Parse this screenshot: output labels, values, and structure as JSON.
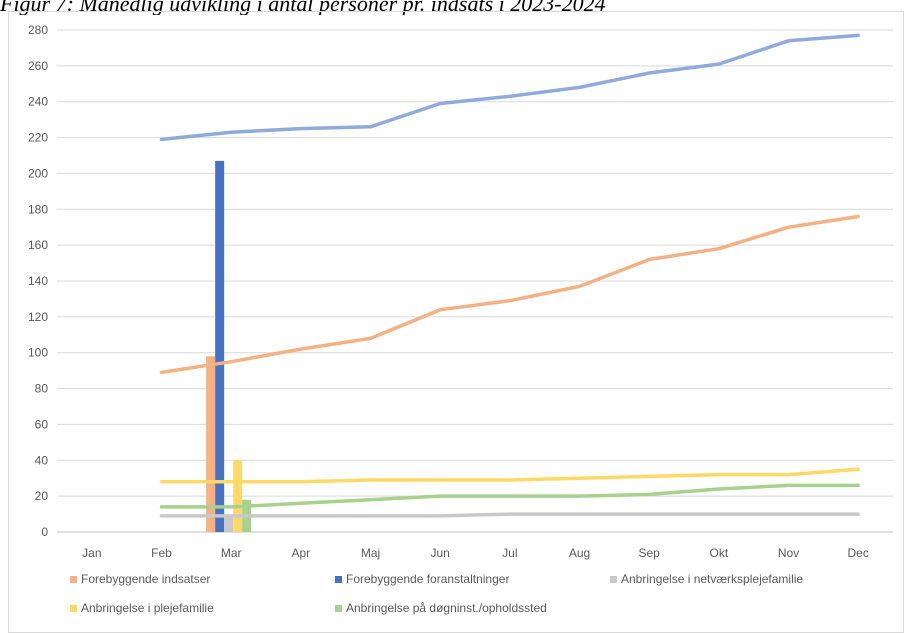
{
  "caption": "Figur 7: Månedlig udvikling i antal personer pr. indsats i 2023-2024",
  "chart_data": {
    "type": "line",
    "categories": [
      "Jan",
      "Feb",
      "Mar",
      "Apr",
      "Maj",
      "Jun",
      "Jul",
      "Aug",
      "Sep",
      "Okt",
      "Nov",
      "Dec"
    ],
    "ylim": [
      0,
      280
    ],
    "yticks": [
      0,
      20,
      40,
      60,
      80,
      100,
      120,
      140,
      160,
      180,
      200,
      220,
      240,
      260,
      280
    ],
    "grid": true,
    "legend_position": "bottom",
    "series": [
      {
        "name": "Forebyggende indsatser",
        "color": "#f4b183",
        "line_values": [
          null,
          89,
          95,
          102,
          108,
          124,
          129,
          137,
          152,
          158,
          170,
          176
        ],
        "bar_value_mar": 98
      },
      {
        "name": "Forebyggende foranstaltninger",
        "color": "#4472c4",
        "line_values": [
          null,
          219,
          223,
          225,
          226,
          239,
          243,
          248,
          256,
          261,
          274,
          277
        ],
        "line_color": "#8faadc",
        "bar_value_mar": 207
      },
      {
        "name": "Anbringelse i netværksplejefamilie",
        "color": "#c9c9c9",
        "line_values": [
          null,
          9,
          9,
          9,
          9,
          9,
          10,
          10,
          10,
          10,
          10,
          10
        ],
        "bar_value_mar": 9
      },
      {
        "name": "Anbringelse i plejefamilie",
        "color": "#ffd966",
        "line_values": [
          null,
          28,
          28,
          28,
          29,
          29,
          29,
          30,
          31,
          32,
          32,
          35
        ],
        "bar_value_mar": 40
      },
      {
        "name": "Anbringelse på døgninst./opholdssted",
        "color": "#a9d18e",
        "line_values": [
          null,
          14,
          14,
          16,
          18,
          20,
          20,
          20,
          21,
          24,
          26,
          26
        ],
        "bar_value_mar": 18
      }
    ]
  }
}
